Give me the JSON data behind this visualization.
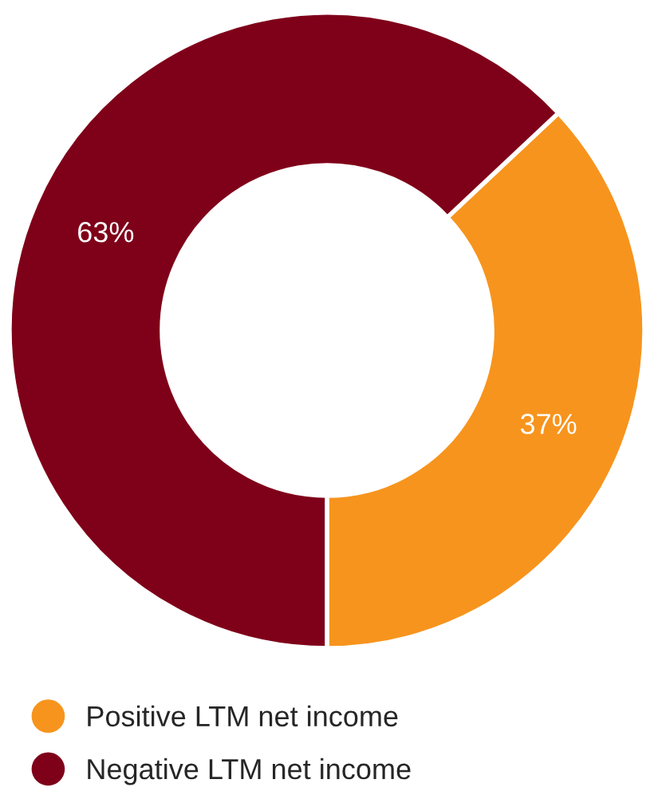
{
  "chart_data": {
    "type": "donut",
    "categories": [
      "Positive LTM net income",
      "Negative LTM net income"
    ],
    "values": [
      37,
      63
    ],
    "colors": [
      "#f7941d",
      "#7f0019"
    ],
    "value_labels": [
      "37%",
      "63%"
    ],
    "legend": "bottom left"
  }
}
